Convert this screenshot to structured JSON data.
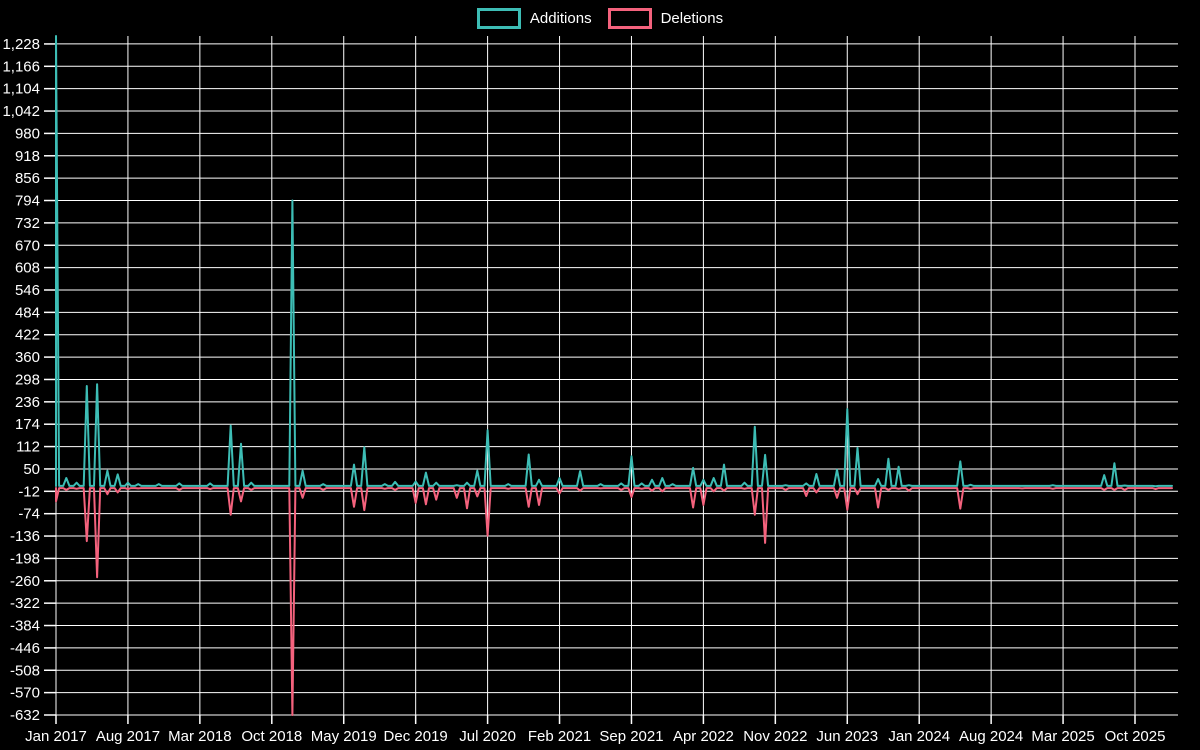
{
  "legend": {
    "items": [
      {
        "label": "Additions",
        "color": "#3dbdb5"
      },
      {
        "label": "Deletions",
        "color": "#f4627d"
      }
    ]
  },
  "chart_data": {
    "type": "line",
    "title": "",
    "xlabel": "",
    "ylabel": "",
    "grid": true,
    "legend_position": "top-center",
    "background_color": "#000000",
    "gridline_color": "#ffffff",
    "text_color": "#ffffff",
    "x_unit": "month",
    "x_months": {
      "start": "Jan 2017",
      "end": "Dec 2025",
      "count": 108
    },
    "ylim": [
      -632,
      1250
    ],
    "y_ticks": [
      {
        "v": 1228,
        "label": "1,228"
      },
      {
        "v": 1166,
        "label": "1,166"
      },
      {
        "v": 1104,
        "label": "1,104"
      },
      {
        "v": 1042,
        "label": "1,042"
      },
      {
        "v": 980,
        "label": "980"
      },
      {
        "v": 918,
        "label": "918"
      },
      {
        "v": 856,
        "label": "856"
      },
      {
        "v": 794,
        "label": "794"
      },
      {
        "v": 732,
        "label": "732"
      },
      {
        "v": 670,
        "label": "670"
      },
      {
        "v": 608,
        "label": "608"
      },
      {
        "v": 546,
        "label": "546"
      },
      {
        "v": 484,
        "label": "484"
      },
      {
        "v": 422,
        "label": "422"
      },
      {
        "v": 360,
        "label": "360"
      },
      {
        "v": 298,
        "label": "298"
      },
      {
        "v": 236,
        "label": "236"
      },
      {
        "v": 174,
        "label": "174"
      },
      {
        "v": 112,
        "label": "112"
      },
      {
        "v": 50,
        "label": "50"
      },
      {
        "v": -12,
        "label": "-12"
      },
      {
        "v": -74,
        "label": "-74"
      },
      {
        "v": -136,
        "label": "-136"
      },
      {
        "v": -198,
        "label": "-198"
      },
      {
        "v": -260,
        "label": "-260"
      },
      {
        "v": -322,
        "label": "-322"
      },
      {
        "v": -384,
        "label": "-384"
      },
      {
        "v": -446,
        "label": "-446"
      },
      {
        "v": -508,
        "label": "-508"
      },
      {
        "v": -570,
        "label": "-570"
      },
      {
        "v": -632,
        "label": "-632"
      }
    ],
    "x_ticks": [
      {
        "m": 0,
        "label": "Jan 2017"
      },
      {
        "m": 7,
        "label": "Aug 2017"
      },
      {
        "m": 14,
        "label": "Mar 2018"
      },
      {
        "m": 21,
        "label": "Oct 2018"
      },
      {
        "m": 28,
        "label": "May 2019"
      },
      {
        "m": 35,
        "label": "Dec 2019"
      },
      {
        "m": 42,
        "label": "Jul 2020"
      },
      {
        "m": 49,
        "label": "Feb 2021"
      },
      {
        "m": 56,
        "label": "Sep 2021"
      },
      {
        "m": 63,
        "label": "Apr 2022"
      },
      {
        "m": 70,
        "label": "Nov 2022"
      },
      {
        "m": 77,
        "label": "Jun 2023"
      },
      {
        "m": 84,
        "label": "Jan 2024"
      },
      {
        "m": 91,
        "label": "Aug 2024"
      },
      {
        "m": 98,
        "label": "Mar 2025"
      },
      {
        "m": 105,
        "label": "Oct 2025"
      }
    ],
    "series": [
      {
        "name": "Additions",
        "color": "#3dbdb5",
        "baseline": 3,
        "values": [
          1250,
          25,
          12,
          280,
          285,
          45,
          35,
          12,
          8,
          3,
          8,
          3,
          10,
          3,
          3,
          10,
          3,
          170,
          120,
          12,
          3,
          3,
          3,
          794,
          45,
          3,
          8,
          3,
          3,
          62,
          110,
          3,
          8,
          14,
          3,
          15,
          40,
          12,
          3,
          5,
          12,
          45,
          157,
          3,
          8,
          3,
          90,
          20,
          3,
          25,
          3,
          44,
          3,
          8,
          3,
          10,
          85,
          10,
          20,
          25,
          8,
          3,
          53,
          20,
          25,
          62,
          3,
          12,
          167,
          89,
          3,
          5,
          3,
          10,
          36,
          3,
          48,
          216,
          108,
          3,
          22,
          78,
          56,
          5,
          3,
          3,
          3,
          3,
          71,
          6,
          3,
          3,
          3,
          3,
          3,
          3,
          3,
          5,
          3,
          3,
          3,
          3,
          33,
          66,
          4,
          3,
          3,
          2
        ]
      },
      {
        "name": "Deletions",
        "color": "#f4627d",
        "baseline": -3,
        "values": [
          -40,
          -8,
          -5,
          -150,
          -250,
          -20,
          -15,
          -6,
          -4,
          -3,
          -3,
          -3,
          -8,
          -3,
          -3,
          -6,
          -3,
          -77,
          -40,
          -8,
          -3,
          -3,
          -3,
          -632,
          -30,
          -3,
          -8,
          -3,
          -3,
          -55,
          -64,
          -3,
          -5,
          -8,
          -3,
          -44,
          -48,
          -35,
          -3,
          -30,
          -59,
          -26,
          -135,
          -3,
          -5,
          -3,
          -55,
          -50,
          -3,
          -18,
          -3,
          -10,
          -3,
          -4,
          -3,
          -8,
          -28,
          -5,
          -10,
          -12,
          -4,
          -3,
          -57,
          -50,
          -12,
          -10,
          -3,
          -5,
          -77,
          -155,
          -3,
          -8,
          -3,
          -25,
          -15,
          -3,
          -30,
          -63,
          -20,
          -3,
          -57,
          -8,
          -5,
          -10,
          -3,
          -3,
          -3,
          -3,
          -60,
          -5,
          -3,
          -3,
          -3,
          -3,
          -4,
          -3,
          -3,
          -5,
          -3,
          -3,
          -3,
          -3,
          -8,
          -8,
          -8,
          -3,
          -3,
          -6
        ]
      }
    ]
  }
}
